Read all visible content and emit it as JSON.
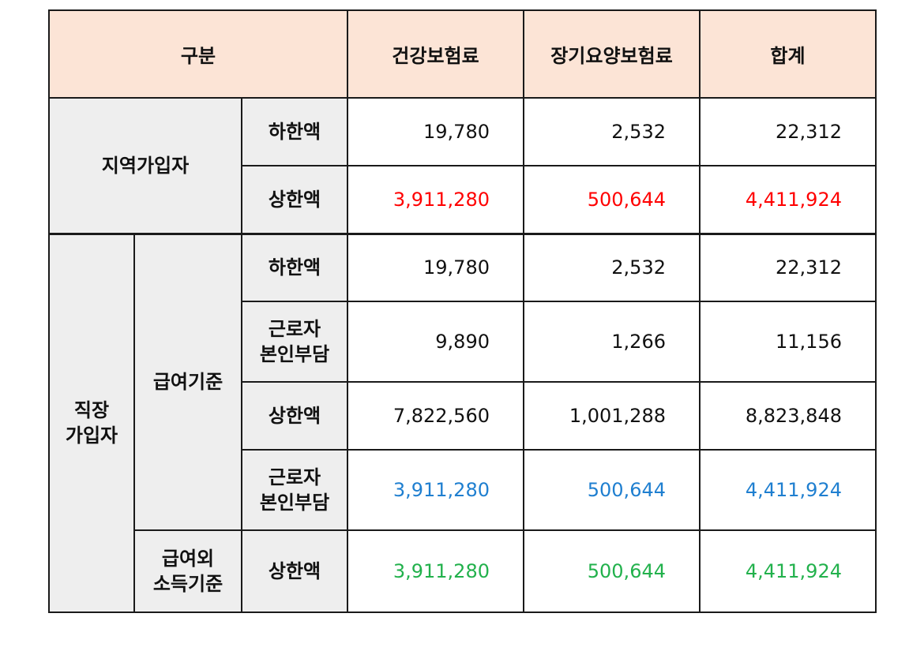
{
  "table": {
    "headers": {
      "category": "구분",
      "health": "건강보험료",
      "longterm": "장기요양보험료",
      "total": "합계"
    },
    "regional": {
      "group_label": "지역가입자",
      "rows": [
        {
          "label": "하한액",
          "health": "19,780",
          "longterm": "2,532",
          "total": "22,312",
          "color": "#111111"
        },
        {
          "label": "상한액",
          "health": "3,911,280",
          "longterm": "500,644",
          "total": "4,411,924",
          "color": "#ff0000"
        }
      ]
    },
    "workplace": {
      "group_label": "직장\n가입자",
      "salary": {
        "label": "급여기준",
        "rows": [
          {
            "label": "하한액",
            "health": "19,780",
            "longterm": "2,532",
            "total": "22,312",
            "color": "#111111"
          },
          {
            "label": "근로자\n본인부담",
            "health": "9,890",
            "longterm": "1,266",
            "total": "11,156",
            "color": "#111111"
          },
          {
            "label": "상한액",
            "health": "7,822,560",
            "longterm": "1,001,288",
            "total": "8,823,848",
            "color": "#111111"
          },
          {
            "label": "근로자\n본인부담",
            "health": "3,911,280",
            "longterm": "500,644",
            "total": "4,411,924",
            "color": "#1f7fd0"
          }
        ]
      },
      "other_income": {
        "label": "급여외\n소득기준",
        "rows": [
          {
            "label": "상한액",
            "health": "3,911,280",
            "longterm": "500,644",
            "total": "4,411,924",
            "color": "#22b14c"
          }
        ]
      }
    }
  }
}
